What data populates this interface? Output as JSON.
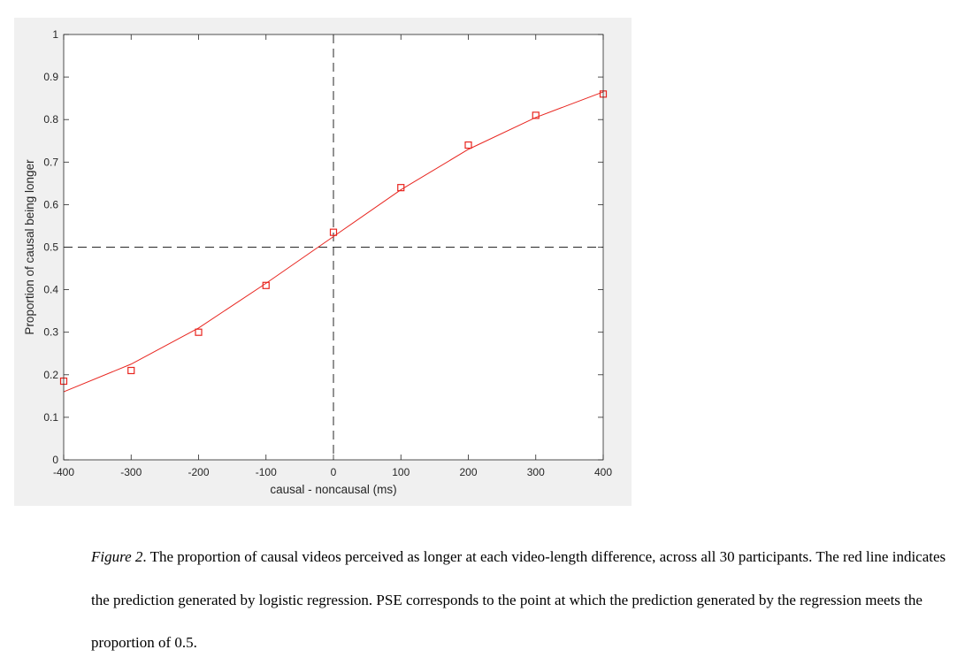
{
  "chart_data": {
    "type": "scatter",
    "xlabel": "causal - noncausal (ms)",
    "ylabel": "Proportion of causal being longer",
    "xlim": [
      -400,
      400
    ],
    "ylim": [
      0,
      1
    ],
    "xticks": [
      -400,
      -300,
      -200,
      -100,
      0,
      100,
      200,
      300,
      400
    ],
    "xtick_labels": [
      "-400",
      "-300",
      "-200",
      "-100",
      "0",
      "100",
      "200",
      "300",
      "400"
    ],
    "yticks": [
      0,
      0.1,
      0.2,
      0.3,
      0.4,
      0.5,
      0.6,
      0.7,
      0.8,
      0.9,
      1
    ],
    "ytick_labels": [
      "0",
      "0.1",
      "0.2",
      "0.3",
      "0.4",
      "0.5",
      "0.6",
      "0.7",
      "0.8",
      "0.9",
      "1"
    ],
    "grid": false,
    "background": "#f0f0f0",
    "series": [
      {
        "marker": "square",
        "color": "#e8251f",
        "x": [
          -400,
          -300,
          -200,
          -100,
          0,
          100,
          200,
          300,
          400
        ],
        "y": [
          0.185,
          0.21,
          0.3,
          0.41,
          0.535,
          0.64,
          0.74,
          0.81,
          0.86
        ]
      },
      {
        "line": "solid",
        "color": "#e8251f",
        "x": [
          -400,
          -300,
          -200,
          -100,
          0,
          100,
          200,
          300,
          400
        ],
        "y": [
          0.16,
          0.225,
          0.31,
          0.415,
          0.525,
          0.635,
          0.73,
          0.805,
          0.865
        ]
      }
    ],
    "reference_lines": [
      {
        "orientation": "horizontal",
        "y": 0.5,
        "style": "dashed",
        "color": "#262626"
      },
      {
        "orientation": "vertical",
        "x": 0,
        "style": "dashed",
        "color": "#262626"
      }
    ]
  },
  "caption": {
    "label": "Figure 2",
    "text": ". The proportion of causal videos perceived as longer at each video-length difference, across all 30 participants. The red line indicates the prediction generated by logistic regression. PSE corresponds to the point at which the prediction generated by the regression meets the proportion of 0.5."
  }
}
